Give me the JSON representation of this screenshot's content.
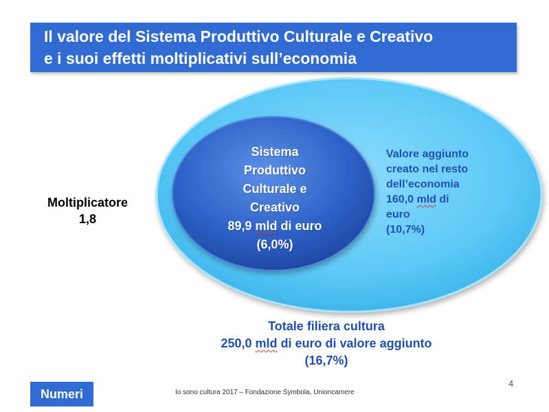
{
  "title": {
    "line1": "Il valore del Sistema Produttivo Culturale e Creativo",
    "line2": "e i suoi effetti moltiplicativi sull’economia"
  },
  "inner_circle": {
    "line1": "Sistema",
    "line2": "Produttivo",
    "line3": "Culturale e",
    "line4": "Creativo",
    "value_num": "89,9",
    "value_unit": "mld",
    "value_rest": "di euro",
    "share": "(6,0%)"
  },
  "outer_circle": {
    "line1": "Valore aggiunto",
    "line2": "creato nel resto",
    "line3": "dell’economia",
    "value_num": "160,0",
    "value_unit": "mld",
    "value_rest": "di",
    "line5": "euro",
    "share": "(10,7%)"
  },
  "multiplier": {
    "label": "Moltiplicatore",
    "value": "1,8"
  },
  "total": {
    "line1": "Totale filiera cultura",
    "value_num": "250,0",
    "value_unit": "mld",
    "value_rest": "di euro di valore aggiunto",
    "share": "(16,7%)"
  },
  "footer": {
    "badge": "Numeri",
    "source": "Io sono cultura 2017 – Fondazione Symbola, Unioncamere",
    "page_number": "4"
  },
  "colors": {
    "title_bar": "#2f6bd3",
    "outer_ellipse": "#5bc8f7",
    "inner_ellipse": "#2e62c8",
    "value_text": "#1f4fb6"
  }
}
